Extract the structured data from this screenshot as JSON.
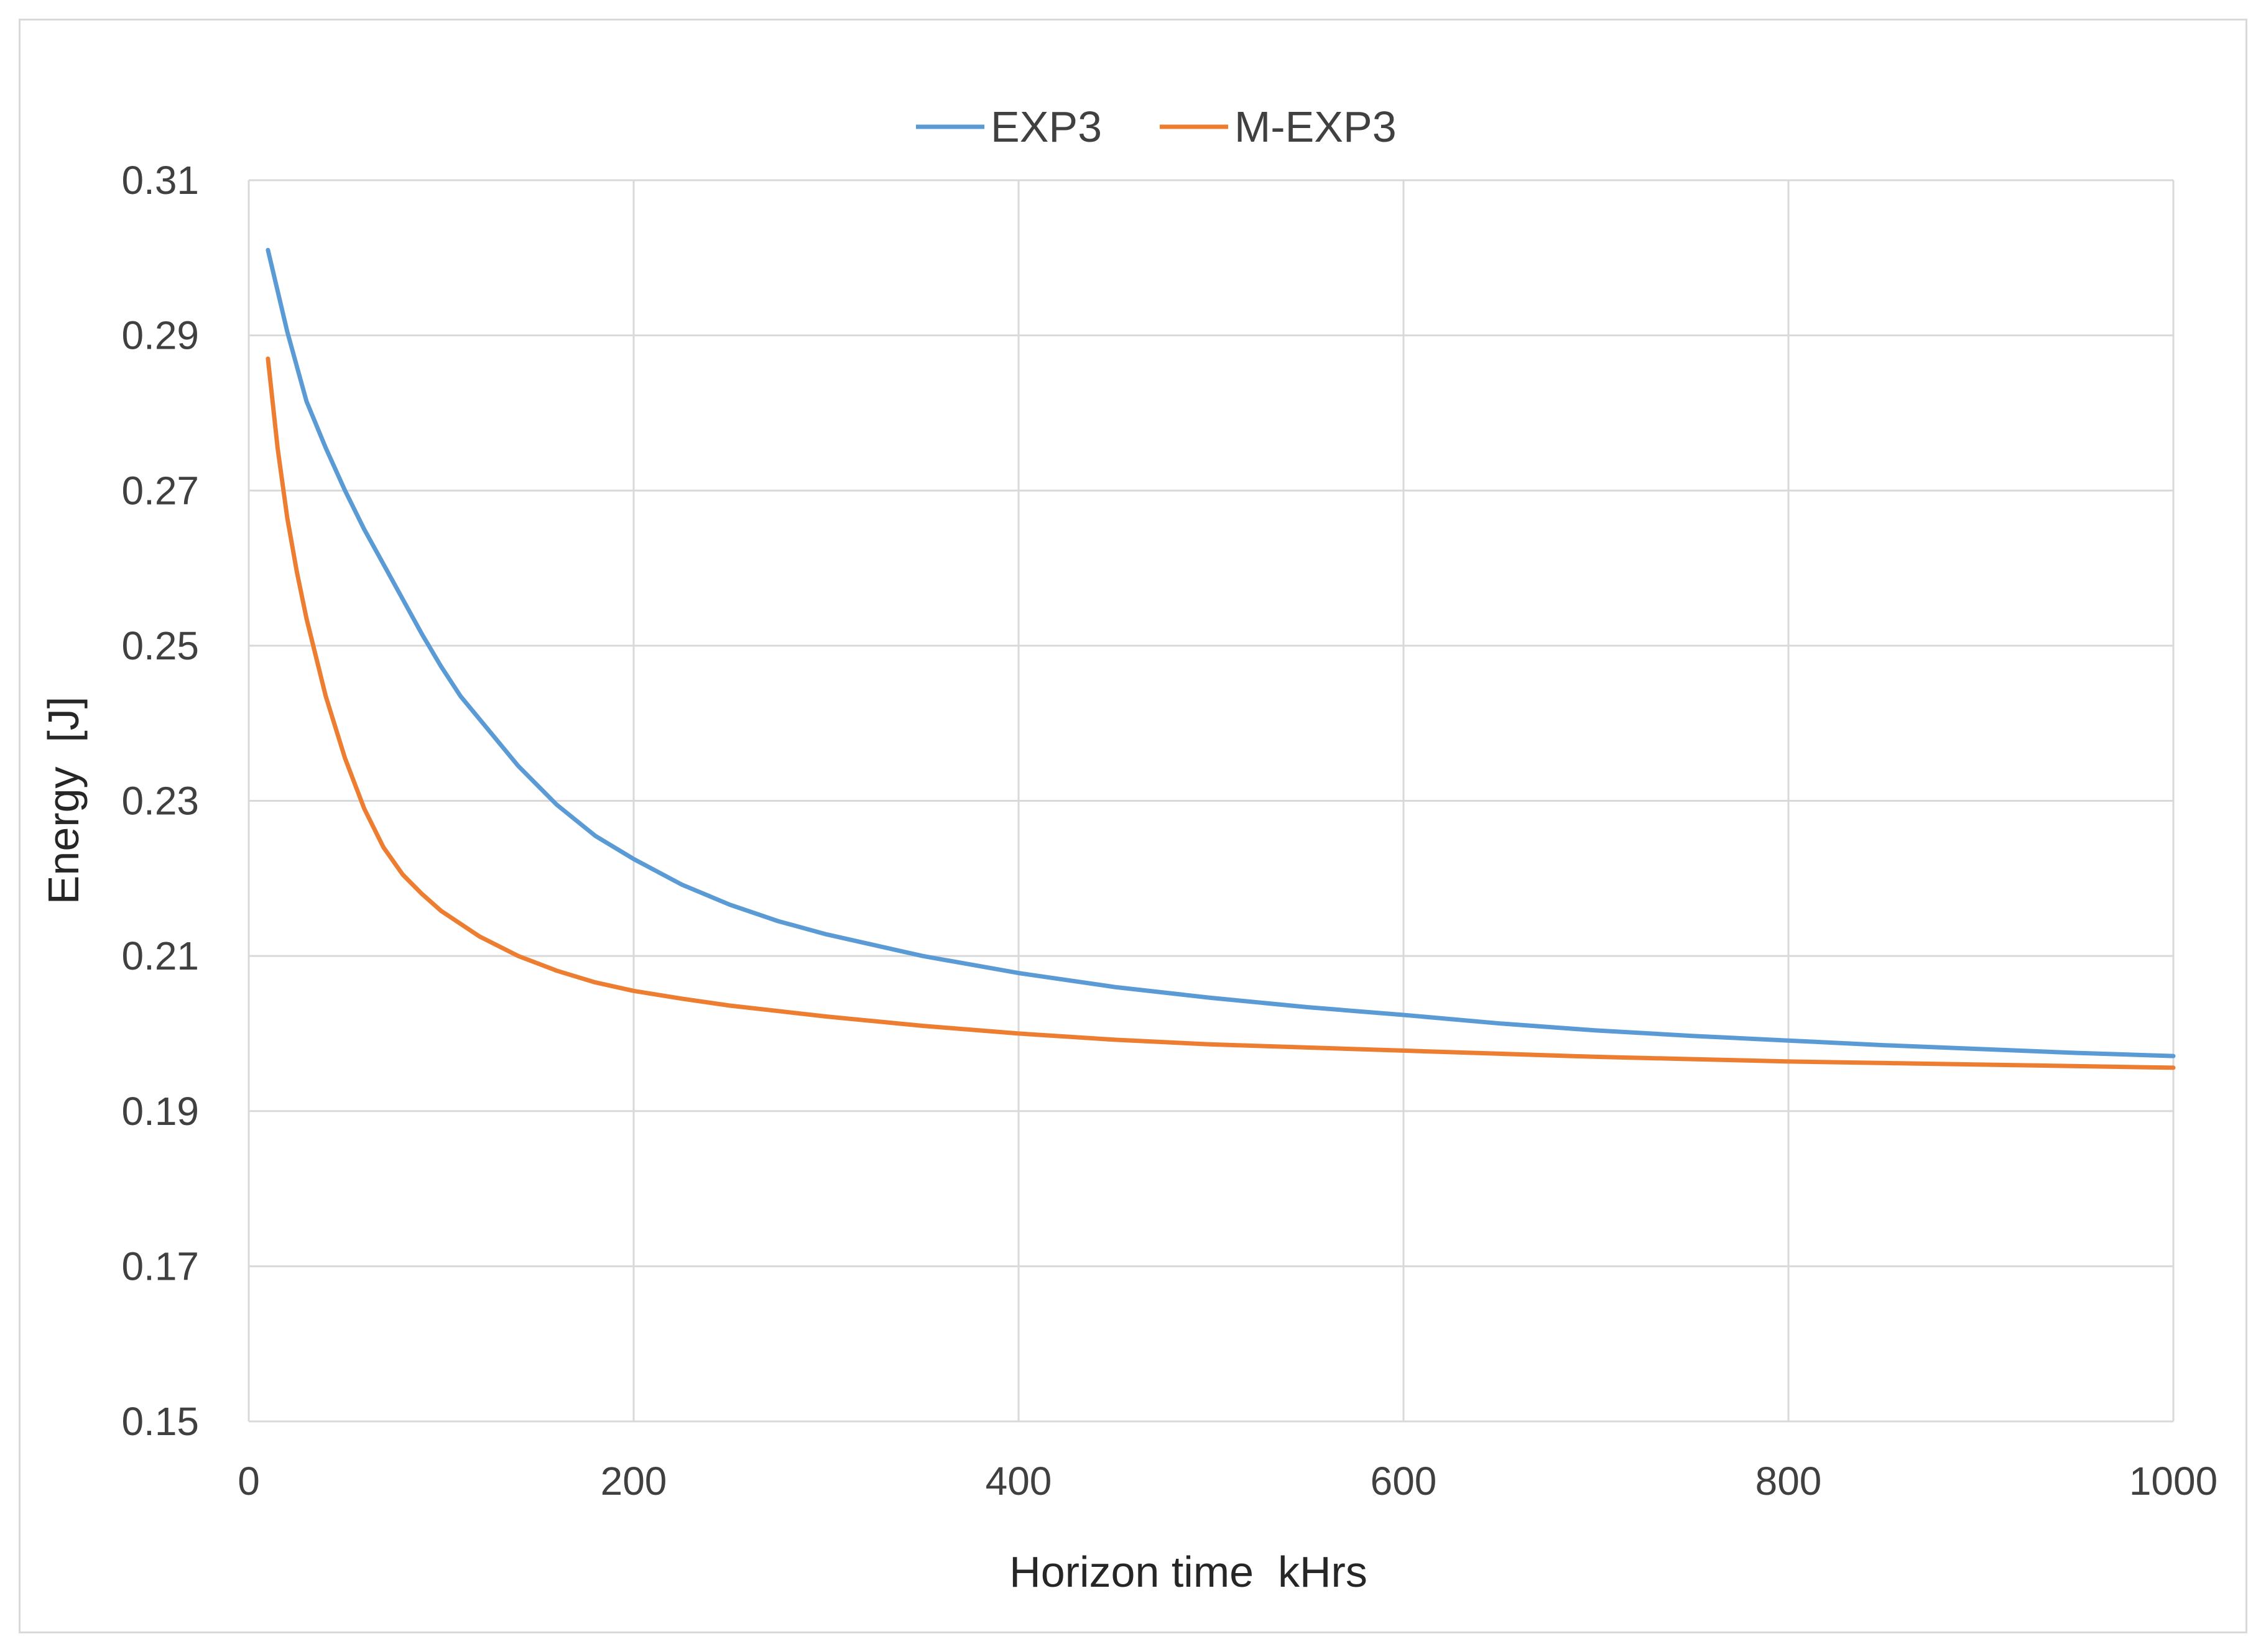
{
  "chart_data": {
    "type": "line",
    "title": "",
    "xlabel": "Horizon time  kHrs",
    "ylabel": "Energy  [J]",
    "xlim": [
      0,
      1000
    ],
    "ylim": [
      0.15,
      0.31
    ],
    "x_ticks": [
      0,
      200,
      400,
      600,
      800,
      1000
    ],
    "y_ticks": [
      "0.15",
      "0.17",
      "0.19",
      "0.21",
      "0.23",
      "0.25",
      "0.27",
      "0.29",
      "0.31"
    ],
    "grid": true,
    "legend_position": "top-center",
    "series": [
      {
        "name": "EXP3",
        "color": "#5b9bd5",
        "x": [
          10,
          20,
          30,
          40,
          50,
          60,
          70,
          80,
          90,
          100,
          110,
          120,
          140,
          160,
          180,
          200,
          225,
          250,
          275,
          300,
          350,
          400,
          450,
          500,
          550,
          600,
          650,
          700,
          750,
          800,
          850,
          900,
          950,
          1000
        ],
        "y": [
          0.301,
          0.2905,
          0.2815,
          0.2755,
          0.27,
          0.265,
          0.2605,
          0.256,
          0.2515,
          0.2473,
          0.2435,
          0.2405,
          0.2345,
          0.2295,
          0.2255,
          0.2225,
          0.2192,
          0.2166,
          0.2145,
          0.2128,
          0.21,
          0.2078,
          0.206,
          0.2046,
          0.2034,
          0.2024,
          0.2013,
          0.2004,
          0.1997,
          0.1991,
          0.1985,
          0.198,
          0.1975,
          0.1971
        ]
      },
      {
        "name": "M-EXP3",
        "color": "#ed7d31",
        "x": [
          10,
          15,
          20,
          25,
          30,
          40,
          50,
          60,
          70,
          80,
          90,
          100,
          120,
          140,
          160,
          180,
          200,
          225,
          250,
          275,
          300,
          350,
          400,
          450,
          500,
          550,
          600,
          650,
          700,
          750,
          800,
          850,
          900,
          950,
          1000
        ],
        "y": [
          0.287,
          0.2755,
          0.2665,
          0.2595,
          0.2535,
          0.2435,
          0.2355,
          0.229,
          0.224,
          0.2205,
          0.218,
          0.2158,
          0.2125,
          0.21,
          0.2081,
          0.2066,
          0.2055,
          0.2045,
          0.2036,
          0.2029,
          0.2022,
          0.201,
          0.2,
          0.1992,
          0.1986,
          0.1982,
          0.1978,
          0.1974,
          0.197,
          0.1967,
          0.1964,
          0.1962,
          0.196,
          0.1958,
          0.1956
        ]
      }
    ]
  }
}
